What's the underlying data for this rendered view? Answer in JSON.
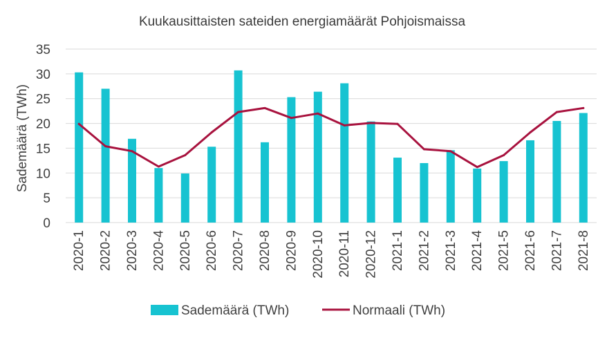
{
  "chart_data": {
    "type": "bar",
    "title": "Kuukausittaisten sateiden energiamäärät Pohjoismaissa",
    "xlabel": "",
    "ylabel": "Sademäärä (TWh)",
    "ylim": [
      0,
      35
    ],
    "yticks": [
      "0",
      "5",
      "10",
      "15",
      "20",
      "25",
      "30",
      "35"
    ],
    "grid": true,
    "legend_position": "bottom",
    "categories": [
      "2020-1",
      "2020-2",
      "2020-3",
      "2020-4",
      "2020-5",
      "2020-6",
      "2020-7",
      "2020-8",
      "2020-9",
      "2020-10",
      "2020-11",
      "2020-12",
      "2021-1",
      "2021-2",
      "2021-3",
      "2021-4",
      "2021-5",
      "2021-6",
      "2021-7",
      "2021-8"
    ],
    "series": [
      {
        "name": "Sademäärä (TWh)",
        "kind": "bar",
        "color": "#17c3d1",
        "values": [
          30.3,
          27.0,
          16.9,
          11.0,
          9.9,
          15.3,
          30.7,
          16.2,
          25.3,
          26.4,
          28.1,
          20.4,
          13.1,
          12.0,
          14.6,
          10.9,
          12.4,
          16.6,
          20.5,
          22.1
        ]
      },
      {
        "name": "Normaali (TWh)",
        "kind": "line",
        "color": "#a8123e",
        "values": [
          19.9,
          15.4,
          14.4,
          11.3,
          13.6,
          18.2,
          22.3,
          23.1,
          21.1,
          22.0,
          19.6,
          20.1,
          19.9,
          14.8,
          14.4,
          11.2,
          13.6,
          18.2,
          22.3,
          23.1
        ]
      }
    ]
  }
}
